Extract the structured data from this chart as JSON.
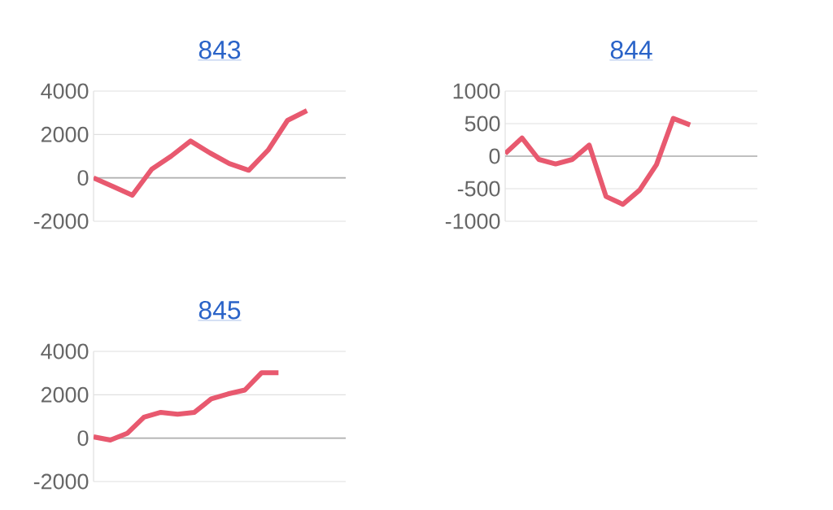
{
  "chart_data": [
    {
      "type": "line",
      "title": "843",
      "categories": [
        null,
        null,
        null,
        null,
        null,
        null,
        null,
        null,
        null,
        null,
        null,
        null,
        null,
        null
      ],
      "series": [
        {
          "color": "#e8596f",
          "values": [
            0,
            -400,
            -800,
            400,
            1000,
            1700,
            1150,
            660,
            350,
            1280,
            2650,
            3100,
            null,
            null
          ]
        }
      ],
      "ylim": [
        -2000,
        4000
      ],
      "yticks": [
        -2000,
        0,
        2000,
        4000
      ],
      "grid": "y",
      "tick_labels": "y",
      "ref_lines": [
        {
          "axis": "y",
          "value": 0,
          "color": "#b0b0b0"
        }
      ]
    },
    {
      "type": "line",
      "title": "844",
      "categories": [
        null,
        null,
        null,
        null,
        null,
        null,
        null,
        null,
        null,
        null,
        null,
        null,
        null,
        null,
        null,
        null
      ],
      "series": [
        {
          "color": "#e8596f",
          "values": [
            40,
            280,
            -50,
            -120,
            -50,
            170,
            -620,
            -740,
            -520,
            -130,
            580,
            480,
            null,
            null,
            null,
            null
          ]
        }
      ],
      "ylim": [
        -1000,
        1000
      ],
      "yticks": [
        -1000,
        -500,
        0,
        500,
        1000
      ],
      "grid": "y",
      "tick_labels": "y",
      "ref_lines": [
        {
          "axis": "y",
          "value": 0,
          "color": "#b0b0b0"
        }
      ]
    },
    {
      "type": "line",
      "title": "845",
      "categories": [
        null,
        null,
        null,
        null,
        null,
        null,
        null,
        null,
        null,
        null,
        null,
        null,
        null,
        null,
        null,
        null
      ],
      "series": [
        {
          "color": "#e8596f",
          "values": [
            60,
            -90,
            220,
            970,
            1190,
            1100,
            1190,
            1810,
            2040,
            2220,
            3020,
            3020,
            null,
            null,
            null,
            null
          ]
        }
      ],
      "ylim": [
        -2000,
        4000
      ],
      "yticks": [
        -2000,
        0,
        2000,
        4000
      ],
      "grid": "y",
      "tick_labels": "y",
      "ref_lines": [
        {
          "axis": "y",
          "value": 0,
          "color": "#b0b0b0"
        }
      ]
    }
  ]
}
